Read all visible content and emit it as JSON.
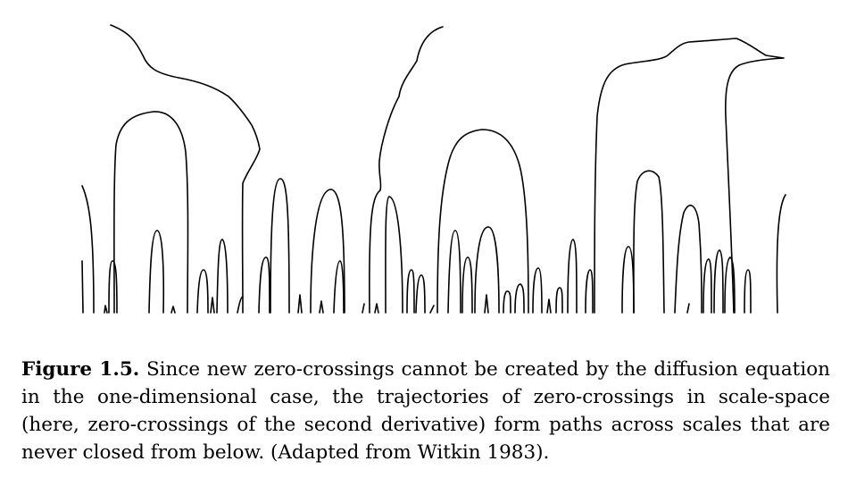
{
  "figure": {
    "label": "Figure 1.5.",
    "caption": " Since new zero-crossings cannot be created by the diffusion equation in the one-dimensional case, the trajectories of zero-crossings in scale-space (here, zero-crossings of the second derivative) form paths across scales that are never closed from below. (Adapted from Witkin 1983)."
  }
}
